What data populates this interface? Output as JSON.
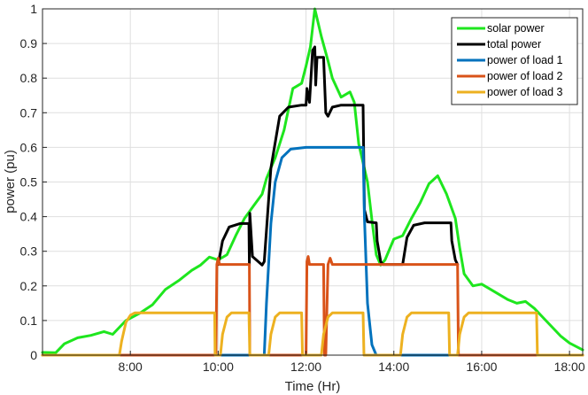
{
  "chart_data": {
    "type": "line",
    "title": "",
    "xlabel": "Time (Hr)",
    "ylabel": "power (pu)",
    "xlim": [
      6,
      18.3
    ],
    "ylim": [
      0,
      1
    ],
    "x_ticks": [
      8,
      10,
      12,
      14,
      16,
      18
    ],
    "x_tick_labels": [
      "8:00",
      "10:00",
      "12:00",
      "14:00",
      "16:00",
      "18:00"
    ],
    "y_ticks": [
      0,
      0.1,
      0.2,
      0.3,
      0.4,
      0.5,
      0.6,
      0.7,
      0.8,
      0.9,
      1
    ],
    "y_tick_labels": [
      "0",
      "0.1",
      "0.2",
      "0.3",
      "0.4",
      "0.5",
      "0.6",
      "0.7",
      "0.8",
      "0.9",
      "1"
    ],
    "grid": true,
    "legend_position": "top-right",
    "series": [
      {
        "name": "solar power",
        "color": "#1ee61e",
        "points": [
          [
            6,
            0.008
          ],
          [
            6.3,
            0.007
          ],
          [
            6.5,
            0.033
          ],
          [
            6.8,
            0.05
          ],
          [
            7.1,
            0.057
          ],
          [
            7.4,
            0.068
          ],
          [
            7.6,
            0.06
          ],
          [
            7.9,
            0.1
          ],
          [
            8.2,
            0.12
          ],
          [
            8.5,
            0.145
          ],
          [
            8.8,
            0.19
          ],
          [
            9.1,
            0.215
          ],
          [
            9.4,
            0.245
          ],
          [
            9.6,
            0.26
          ],
          [
            9.8,
            0.283
          ],
          [
            10.0,
            0.275
          ],
          [
            10.2,
            0.29
          ],
          [
            10.4,
            0.345
          ],
          [
            10.6,
            0.395
          ],
          [
            10.8,
            0.43
          ],
          [
            11.0,
            0.465
          ],
          [
            11.1,
            0.51
          ],
          [
            11.3,
            0.57
          ],
          [
            11.5,
            0.65
          ],
          [
            11.7,
            0.77
          ],
          [
            11.9,
            0.785
          ],
          [
            12.0,
            0.835
          ],
          [
            12.1,
            0.89
          ],
          [
            12.2,
            1.0
          ],
          [
            12.35,
            0.92
          ],
          [
            12.5,
            0.85
          ],
          [
            12.6,
            0.8
          ],
          [
            12.8,
            0.745
          ],
          [
            13.0,
            0.76
          ],
          [
            13.1,
            0.73
          ],
          [
            13.2,
            0.61
          ],
          [
            13.4,
            0.5
          ],
          [
            13.5,
            0.39
          ],
          [
            13.6,
            0.29
          ],
          [
            13.7,
            0.26
          ],
          [
            13.8,
            0.275
          ],
          [
            14.0,
            0.335
          ],
          [
            14.2,
            0.345
          ],
          [
            14.4,
            0.395
          ],
          [
            14.6,
            0.44
          ],
          [
            14.8,
            0.495
          ],
          [
            15.0,
            0.518
          ],
          [
            15.2,
            0.465
          ],
          [
            15.4,
            0.395
          ],
          [
            15.5,
            0.31
          ],
          [
            15.6,
            0.235
          ],
          [
            15.8,
            0.2
          ],
          [
            16.0,
            0.205
          ],
          [
            16.2,
            0.19
          ],
          [
            16.4,
            0.175
          ],
          [
            16.6,
            0.16
          ],
          [
            16.8,
            0.15
          ],
          [
            17.0,
            0.155
          ],
          [
            17.2,
            0.135
          ],
          [
            17.5,
            0.095
          ],
          [
            17.8,
            0.055
          ],
          [
            18.0,
            0.035
          ],
          [
            18.3,
            0.015
          ]
        ]
      },
      {
        "name": "total power",
        "color": "#000000",
        "points": [
          [
            10.0,
            0.262
          ],
          [
            10.1,
            0.33
          ],
          [
            10.25,
            0.37
          ],
          [
            10.5,
            0.38
          ],
          [
            10.7,
            0.38
          ],
          [
            10.71,
            0.26
          ],
          [
            10.72,
            0.41
          ],
          [
            10.78,
            0.285
          ],
          [
            11.0,
            0.26
          ],
          [
            11.05,
            0.27
          ],
          [
            11.2,
            0.54
          ],
          [
            11.4,
            0.69
          ],
          [
            11.6,
            0.716
          ],
          [
            11.9,
            0.722
          ],
          [
            12.0,
            0.722
          ],
          [
            12.02,
            0.77
          ],
          [
            12.08,
            0.73
          ],
          [
            12.15,
            0.88
          ],
          [
            12.2,
            0.89
          ],
          [
            12.22,
            0.78
          ],
          [
            12.25,
            0.86
          ],
          [
            12.4,
            0.86
          ],
          [
            12.45,
            0.7
          ],
          [
            12.5,
            0.69
          ],
          [
            12.6,
            0.716
          ],
          [
            12.8,
            0.722
          ],
          [
            13.3,
            0.722
          ],
          [
            13.33,
            0.42
          ],
          [
            13.4,
            0.385
          ],
          [
            13.6,
            0.382
          ],
          [
            13.62,
            0.33
          ],
          [
            13.7,
            0.27
          ],
          [
            13.75,
            0.262
          ],
          [
            14.2,
            0.262
          ],
          [
            14.3,
            0.34
          ],
          [
            14.45,
            0.375
          ],
          [
            14.7,
            0.382
          ],
          [
            15.3,
            0.382
          ],
          [
            15.32,
            0.33
          ],
          [
            15.4,
            0.275
          ],
          [
            15.45,
            0.262
          ]
        ]
      },
      {
        "name": "power of load 1",
        "color": "#0072bd",
        "points": [
          [
            6,
            0
          ],
          [
            11.05,
            0
          ],
          [
            11.1,
            0.15
          ],
          [
            11.2,
            0.38
          ],
          [
            11.3,
            0.5
          ],
          [
            11.45,
            0.57
          ],
          [
            11.65,
            0.595
          ],
          [
            12.0,
            0.6
          ],
          [
            13.3,
            0.6
          ],
          [
            13.33,
            0.4
          ],
          [
            13.4,
            0.15
          ],
          [
            13.5,
            0.03
          ],
          [
            13.6,
            0
          ],
          [
            18.3,
            0
          ]
        ]
      },
      {
        "name": "power of load 2",
        "color": "#d95319",
        "points": [
          [
            6,
            0
          ],
          [
            9.95,
            0
          ],
          [
            9.97,
            0.262
          ],
          [
            10.0,
            0.28
          ],
          [
            10.03,
            0.262
          ],
          [
            10.71,
            0.262
          ],
          [
            10.72,
            0
          ],
          [
            12.0,
            0
          ],
          [
            12.02,
            0.27
          ],
          [
            12.05,
            0.285
          ],
          [
            12.08,
            0.262
          ],
          [
            12.4,
            0.262
          ],
          [
            12.42,
            0
          ],
          [
            12.45,
            0
          ],
          [
            12.5,
            0.262
          ],
          [
            12.55,
            0.28
          ],
          [
            12.6,
            0.262
          ],
          [
            15.45,
            0.262
          ],
          [
            15.47,
            0
          ],
          [
            18.3,
            0
          ]
        ]
      },
      {
        "name": "power of load 3",
        "color": "#edb120",
        "points": [
          [
            6,
            0
          ],
          [
            7.75,
            0
          ],
          [
            7.8,
            0.04
          ],
          [
            7.9,
            0.095
          ],
          [
            8.0,
            0.115
          ],
          [
            8.1,
            0.122
          ],
          [
            9.92,
            0.122
          ],
          [
            9.93,
            0
          ],
          [
            10.05,
            0
          ],
          [
            10.1,
            0.06
          ],
          [
            10.2,
            0.11
          ],
          [
            10.3,
            0.122
          ],
          [
            10.7,
            0.122
          ],
          [
            10.72,
            0
          ],
          [
            11.15,
            0
          ],
          [
            11.2,
            0.06
          ],
          [
            11.3,
            0.11
          ],
          [
            11.4,
            0.122
          ],
          [
            11.9,
            0.122
          ],
          [
            11.92,
            0
          ],
          [
            12.35,
            0
          ],
          [
            12.4,
            0.06
          ],
          [
            12.5,
            0.11
          ],
          [
            12.6,
            0.122
          ],
          [
            13.3,
            0.122
          ],
          [
            13.32,
            0
          ],
          [
            14.15,
            0
          ],
          [
            14.2,
            0.06
          ],
          [
            14.3,
            0.11
          ],
          [
            14.4,
            0.122
          ],
          [
            15.25,
            0.122
          ],
          [
            15.27,
            0
          ],
          [
            15.45,
            0
          ],
          [
            15.5,
            0.06
          ],
          [
            15.6,
            0.11
          ],
          [
            15.7,
            0.122
          ],
          [
            17.25,
            0.122
          ],
          [
            17.27,
            0
          ],
          [
            18.3,
            0
          ]
        ]
      }
    ]
  }
}
